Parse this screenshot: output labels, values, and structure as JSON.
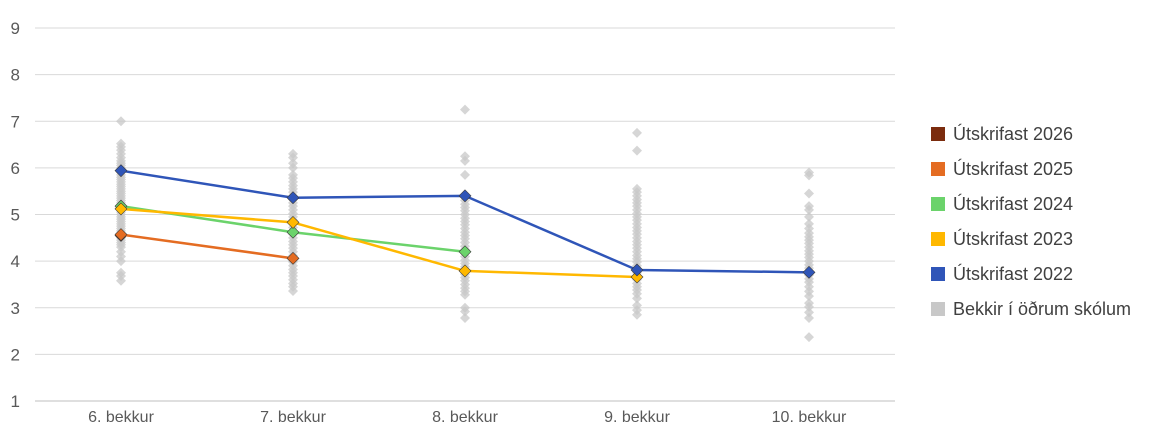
{
  "chart_data": {
    "type": "line",
    "title": "",
    "xlabel": "",
    "ylabel": "",
    "ylim": [
      1,
      9
    ],
    "yticks": [
      1,
      2,
      3,
      4,
      5,
      6,
      7,
      8,
      9
    ],
    "grid": true,
    "legend_position": "right",
    "categories": [
      "6. bekkur",
      "7. bekkur",
      "8. bekkur",
      "9. bekkur",
      "10. bekkur"
    ],
    "series": [
      {
        "name": "Útskrifast 2026",
        "color": "#7B2C0E",
        "values": [
          4.55,
          null,
          null,
          null,
          null
        ]
      },
      {
        "name": "Útskrifast 2025",
        "color": "#E46C22",
        "values": [
          4.57,
          4.06,
          null,
          null,
          null
        ]
      },
      {
        "name": "Útskrifast 2024",
        "color": "#6BD36B",
        "values": [
          5.18,
          4.62,
          4.2,
          null,
          null
        ]
      },
      {
        "name": "Útskrifast 2023",
        "color": "#FFB800",
        "values": [
          5.12,
          4.83,
          3.79,
          3.66,
          null
        ]
      },
      {
        "name": "Útskrifast 2022",
        "color": "#2F55B8",
        "values": [
          5.94,
          5.36,
          5.4,
          3.81,
          3.76
        ]
      }
    ],
    "background_series": {
      "name": "Bekkir í öðrum skólum",
      "color": "#C8C8C8",
      "points": [
        [
          [
            7.0,
            6.52,
            6.45,
            6.38,
            6.3,
            6.22,
            6.15,
            6.1,
            6.05,
            6.0,
            5.95,
            5.9,
            5.85,
            5.8,
            5.75,
            5.7,
            5.65,
            5.6,
            5.55,
            5.5,
            5.45,
            5.4,
            5.35,
            5.3,
            5.25,
            5.2,
            5.15,
            5.1,
            5.05,
            5.0,
            4.95,
            4.9,
            4.85,
            4.8,
            4.75,
            4.7,
            4.65,
            4.6,
            4.55,
            4.5,
            4.45,
            4.4,
            4.35,
            4.3,
            4.2,
            4.1,
            4.0,
            3.75,
            3.68,
            3.58
          ]
        ],
        [
          [
            6.3,
            6.22,
            6.1,
            6.0,
            5.85,
            5.78,
            5.7,
            5.62,
            5.55,
            5.48,
            5.4,
            5.32,
            5.25,
            5.18,
            5.1,
            5.02,
            4.95,
            4.88,
            4.8,
            4.72,
            4.65,
            4.58,
            4.5,
            4.42,
            4.35,
            4.28,
            4.2,
            4.12,
            4.05,
            3.98,
            3.9,
            3.82,
            3.75,
            3.68,
            3.6,
            3.52,
            3.45,
            3.36
          ]
        ],
        [
          [
            7.25,
            6.25,
            6.15,
            5.85,
            5.4,
            5.3,
            5.22,
            5.15,
            5.08,
            5.0,
            4.92,
            4.85,
            4.78,
            4.7,
            4.62,
            4.55,
            4.48,
            4.4,
            4.32,
            4.25,
            4.18,
            4.1,
            4.02,
            3.95,
            3.88,
            3.8,
            3.72,
            3.65,
            3.58,
            3.5,
            3.42,
            3.35,
            3.28,
            3.0,
            2.92,
            2.78
          ]
        ],
        [
          [
            6.75,
            6.37,
            5.55,
            5.48,
            5.4,
            5.32,
            5.25,
            5.18,
            5.1,
            5.02,
            4.95,
            4.88,
            4.8,
            4.72,
            4.65,
            4.58,
            4.5,
            4.42,
            4.35,
            4.28,
            4.2,
            4.12,
            4.05,
            3.98,
            3.9,
            3.82,
            3.75,
            3.68,
            3.6,
            3.52,
            3.45,
            3.38,
            3.3,
            3.2,
            3.05,
            2.95,
            2.85
          ]
        ],
        [
          [
            5.9,
            5.84,
            5.45,
            5.18,
            5.1,
            4.95,
            4.8,
            4.7,
            4.6,
            4.52,
            4.45,
            4.38,
            4.3,
            4.22,
            4.15,
            4.08,
            4.0,
            3.92,
            3.85,
            3.78,
            3.7,
            3.62,
            3.55,
            3.45,
            3.35,
            3.25,
            3.1,
            3.02,
            2.9,
            2.78,
            2.37
          ]
        ]
      ]
    }
  }
}
